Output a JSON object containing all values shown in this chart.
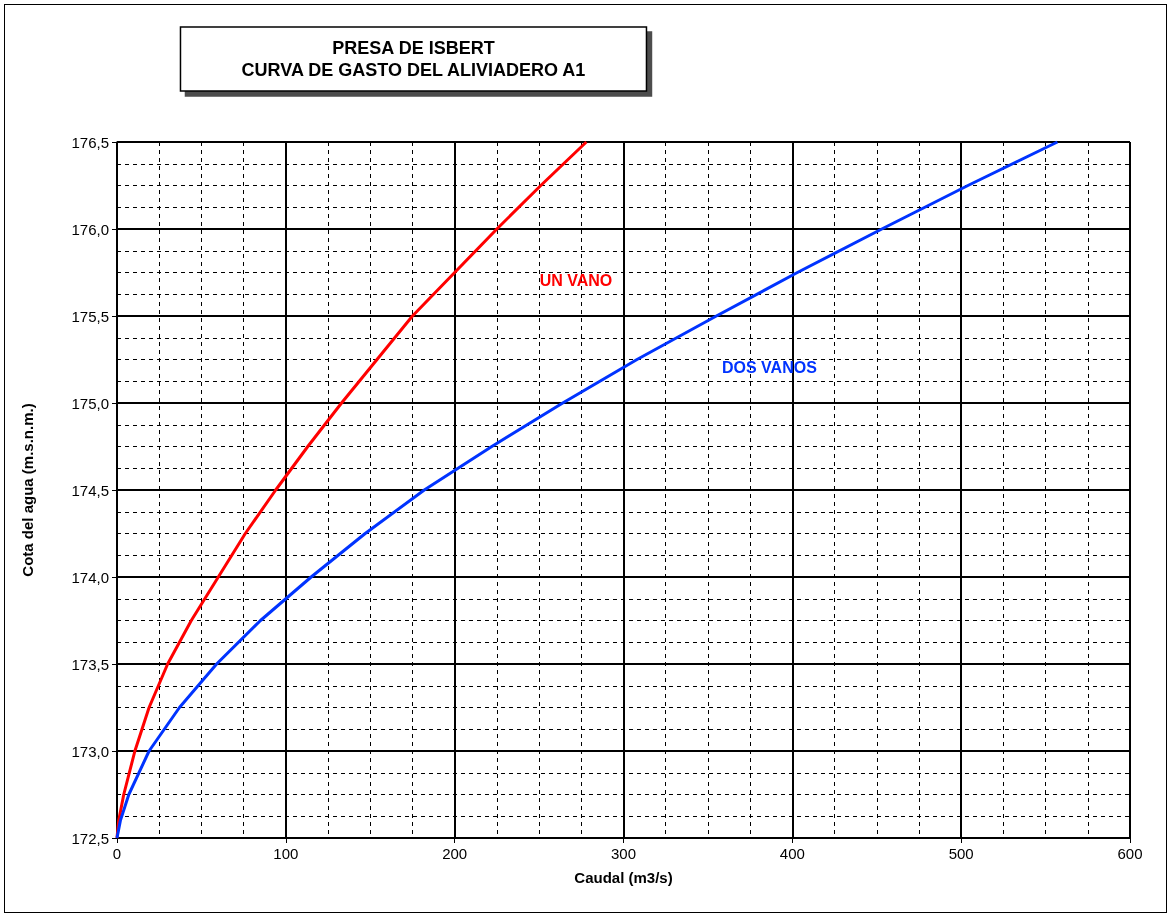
{
  "chart_data": {
    "type": "line",
    "title": "PRESA DE ISBERT\nCURVA DE GASTO DEL ALIVIADERO A1",
    "xlabel": "Caudal (m3/s)",
    "ylabel": "Cota del agua (m.s.n.m.)",
    "series": [
      {
        "name": "UN VANO",
        "color": "#ff0000",
        "x": [
          0,
          1,
          4,
          10.6,
          19,
          30,
          44,
          60,
          76,
          94,
          113,
          133,
          154,
          175,
          200,
          225,
          251,
          278
        ],
        "values": [
          172.5,
          172.6,
          172.75,
          173.0,
          173.25,
          173.5,
          173.75,
          174.0,
          174.25,
          174.5,
          174.75,
          175.0,
          175.25,
          175.5,
          175.75,
          176.0,
          176.25,
          176.5
        ]
      },
      {
        "name": "DOS VANOS",
        "color": "#0033ff",
        "x": [
          0,
          2,
          7,
          19,
          37,
          59,
          85,
          115,
          147,
          182,
          222,
          264,
          308,
          355,
          403,
          453,
          504,
          557
        ],
        "values": [
          172.5,
          172.6,
          172.75,
          173.0,
          173.25,
          173.5,
          173.75,
          174.0,
          174.25,
          174.5,
          174.75,
          175.0,
          175.25,
          175.5,
          175.75,
          176.0,
          176.25,
          176.5
        ]
      }
    ],
    "xlim": [
      0,
      600
    ],
    "xticks": [
      0,
      100,
      200,
      300,
      400,
      500,
      600
    ],
    "ylim": [
      172.5,
      176.5
    ],
    "yticks": [
      {
        "value": 172.5,
        "label": "172,5"
      },
      {
        "value": 173,
        "label": "173,0"
      },
      {
        "value": 173.5,
        "label": "173,5"
      },
      {
        "value": 174,
        "label": "174,0"
      },
      {
        "value": 174.5,
        "label": "174,5"
      },
      {
        "value": 175,
        "label": "175,0"
      },
      {
        "value": 175.5,
        "label": "175,5"
      },
      {
        "value": 176,
        "label": "176,0"
      },
      {
        "value": 176.5,
        "label": "176,5"
      }
    ],
    "grid": true,
    "marker": "none",
    "line_style": "solid"
  }
}
